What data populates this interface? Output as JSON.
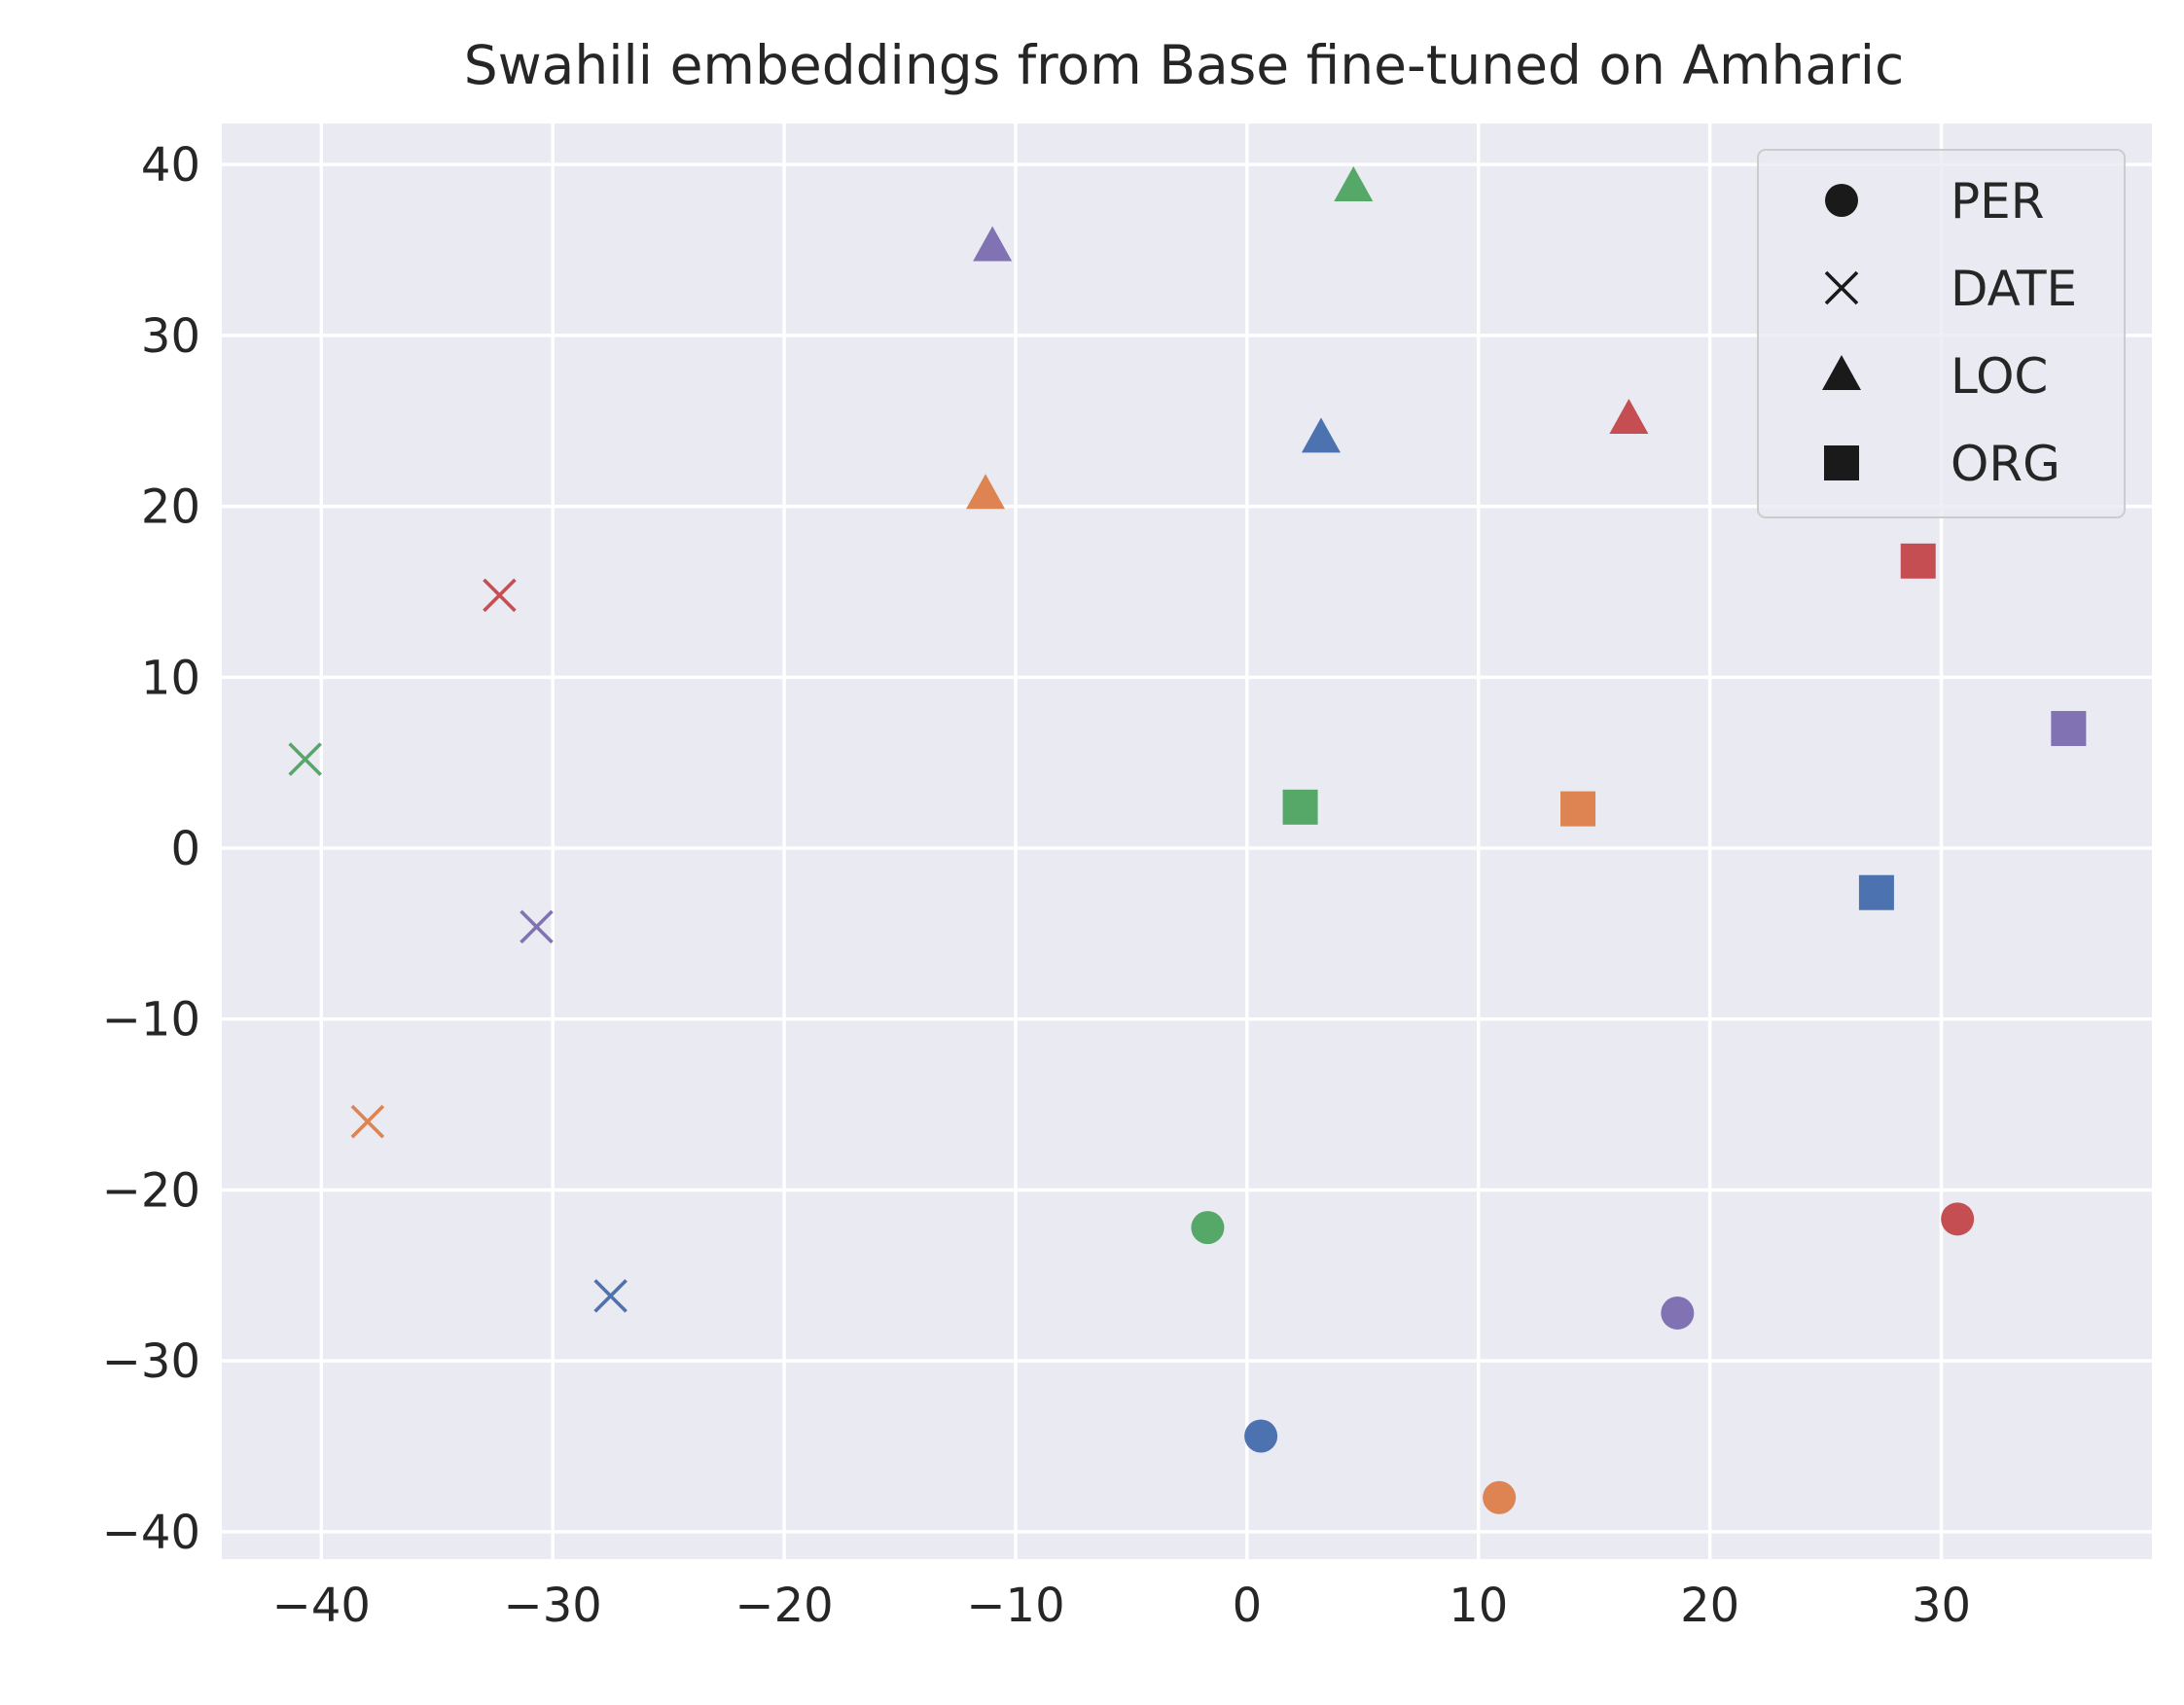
{
  "chart_data": {
    "type": "scatter",
    "title": "Swahili embeddings from Base fine-tuned on Amharic",
    "xlabel": "",
    "ylabel": "",
    "xlim": [
      -44.3,
      39.1
    ],
    "ylim": [
      -41.6,
      42.4
    ],
    "xticks": [
      -40,
      -30,
      -20,
      -10,
      0,
      10,
      20,
      30
    ],
    "yticks": [
      -40,
      -30,
      -20,
      -10,
      0,
      10,
      20,
      30,
      40
    ],
    "xtick_labels": [
      "−40",
      "−30",
      "−20",
      "−10",
      "0",
      "10",
      "20",
      "30"
    ],
    "ytick_labels": [
      "−40",
      "−30",
      "−20",
      "−10",
      "0",
      "10",
      "20",
      "30",
      "40"
    ],
    "grid": true,
    "legend_position": "top-right",
    "legend": [
      {
        "label": "PER",
        "marker": "circle"
      },
      {
        "label": "DATE",
        "marker": "x"
      },
      {
        "label": "LOC",
        "marker": "triangle"
      },
      {
        "label": "ORG",
        "marker": "square"
      }
    ],
    "colors": {
      "blue": "#4c72b0",
      "orange": "#dd8452",
      "green": "#55a868",
      "red": "#c44e52",
      "purple": "#8172b3"
    },
    "points": [
      {
        "x": 0.6,
        "y": -34.4,
        "marker": "circle",
        "color": "blue"
      },
      {
        "x": 10.9,
        "y": -38.0,
        "marker": "circle",
        "color": "orange"
      },
      {
        "x": -1.7,
        "y": -22.2,
        "marker": "circle",
        "color": "green"
      },
      {
        "x": 30.7,
        "y": -21.7,
        "marker": "circle",
        "color": "red"
      },
      {
        "x": 18.6,
        "y": -27.2,
        "marker": "circle",
        "color": "purple"
      },
      {
        "x": -27.5,
        "y": -26.2,
        "marker": "x",
        "color": "blue"
      },
      {
        "x": -38.0,
        "y": -16.0,
        "marker": "x",
        "color": "orange"
      },
      {
        "x": -40.7,
        "y": 5.2,
        "marker": "x",
        "color": "green"
      },
      {
        "x": -32.3,
        "y": 14.8,
        "marker": "x",
        "color": "red"
      },
      {
        "x": -30.7,
        "y": -4.6,
        "marker": "x",
        "color": "purple"
      },
      {
        "x": 3.2,
        "y": 24.0,
        "marker": "triangle",
        "color": "blue"
      },
      {
        "x": -11.3,
        "y": 20.7,
        "marker": "triangle",
        "color": "orange"
      },
      {
        "x": 4.6,
        "y": 38.7,
        "marker": "triangle",
        "color": "green"
      },
      {
        "x": 16.5,
        "y": 25.1,
        "marker": "triangle",
        "color": "red"
      },
      {
        "x": -11.0,
        "y": 35.2,
        "marker": "triangle",
        "color": "purple"
      },
      {
        "x": 27.2,
        "y": -2.6,
        "marker": "square",
        "color": "blue"
      },
      {
        "x": 14.3,
        "y": 2.3,
        "marker": "square",
        "color": "orange"
      },
      {
        "x": 2.3,
        "y": 2.4,
        "marker": "square",
        "color": "green"
      },
      {
        "x": 29.0,
        "y": 16.8,
        "marker": "square",
        "color": "red"
      },
      {
        "x": 35.5,
        "y": 7.0,
        "marker": "square",
        "color": "purple"
      }
    ]
  }
}
